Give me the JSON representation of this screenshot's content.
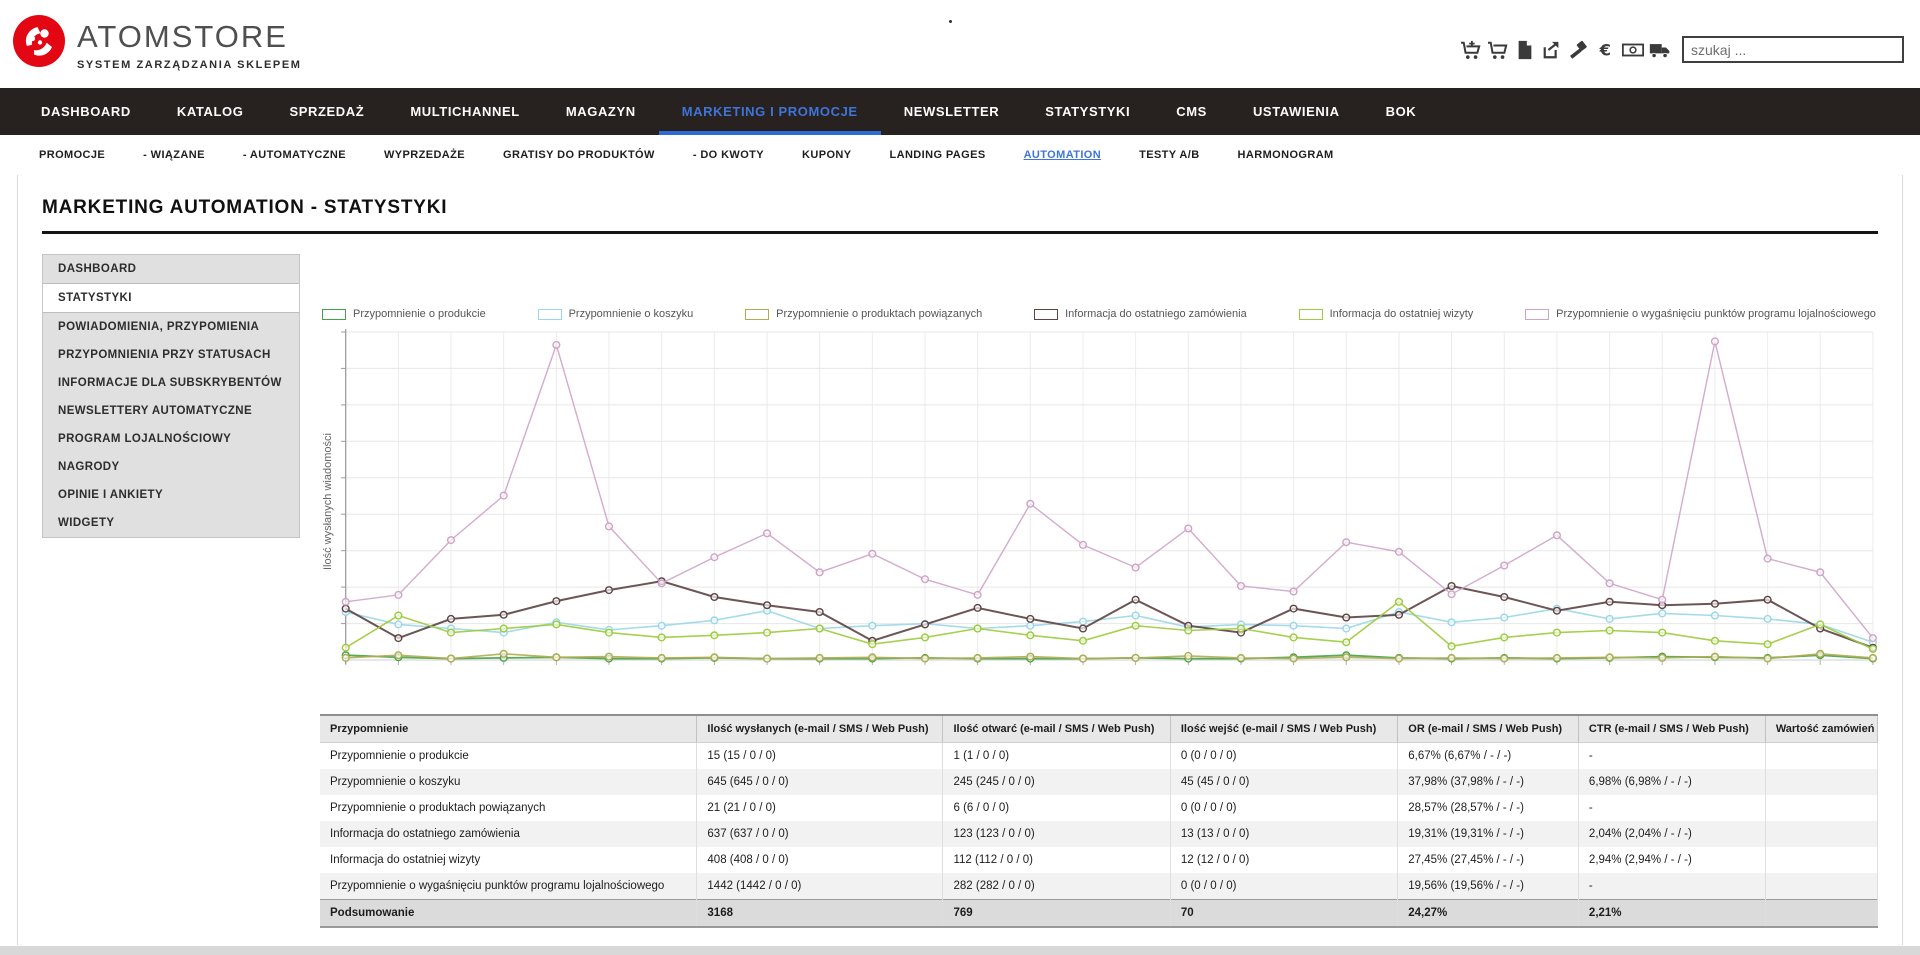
{
  "header": {
    "brand": "ATOMSTORE",
    "tagline": "SYSTEM ZARZĄDZANIA SKLEPEM",
    "search_placeholder": "szukaj ...",
    "logo_color": "#e30613",
    "icons": [
      "cart-plus-icon",
      "cart-icon",
      "file-icon",
      "export-icon",
      "gavel-icon",
      "euro-icon",
      "banknote-icon",
      "truck-icon"
    ]
  },
  "nav": {
    "background": "#272120",
    "active_color": "#3f74d8",
    "items": [
      {
        "label": "DASHBOARD",
        "active": false
      },
      {
        "label": "KATALOG",
        "active": false
      },
      {
        "label": "SPRZEDAŻ",
        "active": false
      },
      {
        "label": "MULTICHANNEL",
        "active": false
      },
      {
        "label": "MAGAZYN",
        "active": false
      },
      {
        "label": "MARKETING I PROMOCJE",
        "active": true
      },
      {
        "label": "NEWSLETTER",
        "active": false
      },
      {
        "label": "STATYSTYKI",
        "active": false
      },
      {
        "label": "CMS",
        "active": false
      },
      {
        "label": "USTAWIENIA",
        "active": false
      },
      {
        "label": "BOK",
        "active": false
      }
    ]
  },
  "subnav": {
    "items": [
      {
        "label": "PROMOCJE",
        "active": false
      },
      {
        "label": "- WIĄZANE",
        "active": false
      },
      {
        "label": "- AUTOMATYCZNE",
        "active": false
      },
      {
        "label": "WYPRZEDAŻE",
        "active": false
      },
      {
        "label": "GRATISY DO PRODUKTÓW",
        "active": false
      },
      {
        "label": "- DO KWOTY",
        "active": false
      },
      {
        "label": "KUPONY",
        "active": false
      },
      {
        "label": "LANDING PAGES",
        "active": false
      },
      {
        "label": "AUTOMATION",
        "active": true
      },
      {
        "label": "TESTY A/B",
        "active": false
      },
      {
        "label": "HARMONOGRAM",
        "active": false
      }
    ]
  },
  "page": {
    "title": "MARKETING AUTOMATION - STATYSTYKI"
  },
  "sidebar": {
    "items": [
      {
        "label": "DASHBOARD",
        "active": false
      },
      {
        "label": "STATYSTYKI",
        "active": true
      },
      {
        "label": "POWIADOMIENIA, PRZYPOMIENIA",
        "active": false
      },
      {
        "label": "PRZYPOMNIENIA PRZY STATUSACH",
        "active": false
      },
      {
        "label": "INFORMACJE DLA SUBSKRYBENTÓW",
        "active": false
      },
      {
        "label": "NEWSLETTERY AUTOMATYCZNE",
        "active": false
      },
      {
        "label": "PROGRAM LOJALNOŚCIOWY",
        "active": false
      },
      {
        "label": "NAGRODY",
        "active": false
      },
      {
        "label": "OPINIE I ANKIETY",
        "active": false
      },
      {
        "label": "WIDGETY",
        "active": false
      }
    ]
  },
  "chart_data": {
    "type": "line",
    "title": "",
    "xlabel": "",
    "ylabel": "Ilość wysłanych wiadomości",
    "x_tick_labels_visible": false,
    "y_tick_labels_visible": false,
    "grid": true,
    "legend_position": "top",
    "marker": "open-circle",
    "ylim": [
      0,
      470
    ],
    "series": [
      {
        "name": "Przypomnienie o produkcie",
        "color": "#47a247",
        "width": 1.8,
        "values": [
          7,
          4,
          2,
          3,
          4,
          2,
          2,
          3,
          2,
          2,
          2,
          3,
          2,
          2,
          2,
          3,
          2,
          2,
          4,
          7,
          3,
          2,
          3,
          2,
          3,
          5,
          4,
          3,
          7,
          2
        ]
      },
      {
        "name": "Przypomnienie o koszyku",
        "color": "#9ad7e6",
        "width": 1.6,
        "values": [
          70,
          52,
          46,
          40,
          55,
          44,
          50,
          58,
          72,
          46,
          50,
          53,
          46,
          50,
          56,
          65,
          48,
          52,
          50,
          46,
          70,
          55,
          62,
          75,
          60,
          68,
          65,
          60,
          52,
          26
        ]
      },
      {
        "name": "Przypomnienie o produktach powiązanych",
        "color": "#b0ad51",
        "width": 1.6,
        "values": [
          3,
          7,
          2,
          9,
          4,
          5,
          3,
          4,
          2,
          3,
          4,
          2,
          3,
          5,
          2,
          3,
          6,
          3,
          2,
          4,
          2,
          3,
          2,
          3,
          4,
          3,
          5,
          2,
          9,
          3
        ]
      },
      {
        "name": "Informacja do ostatniego zamówienia",
        "color": "#5e4343",
        "width": 2,
        "values": [
          75,
          32,
          60,
          66,
          86,
          102,
          115,
          92,
          80,
          70,
          28,
          52,
          76,
          60,
          46,
          88,
          50,
          40,
          75,
          62,
          66,
          108,
          92,
          72,
          85,
          80,
          82,
          88,
          46,
          18
        ]
      },
      {
        "name": "Informacja do ostatniej wizyty",
        "color": "#9ccb3b",
        "width": 1.6,
        "values": [
          18,
          65,
          40,
          46,
          52,
          40,
          33,
          36,
          40,
          46,
          23,
          33,
          46,
          36,
          28,
          50,
          43,
          46,
          33,
          26,
          85,
          20,
          33,
          40,
          43,
          40,
          28,
          23,
          52,
          16
        ]
      },
      {
        "name": "Przypomnienie o wygaśnięciu punktów programu lojalnościowego",
        "color": "#cfa3c6",
        "width": 1.4,
        "values": [
          85,
          95,
          175,
          240,
          460,
          195,
          112,
          150,
          185,
          128,
          155,
          118,
          95,
          228,
          168,
          135,
          192,
          108,
          100,
          172,
          158,
          96,
          138,
          182,
          112,
          88,
          465,
          148,
          128,
          32
        ]
      }
    ]
  },
  "table": {
    "columns": [
      "Przypomnienie",
      "Ilość wysłanych (e-mail / SMS / Web Push)",
      "Ilość otwarć (e-mail / SMS / Web Push)",
      "Ilość wejść (e-mail / SMS / Web Push)",
      "OR (e-mail / SMS / Web Push)",
      "CTR (e-mail / SMS / Web Push)",
      "Wartość zamówień"
    ],
    "rows": [
      [
        "Przypomnienie o produkcie",
        "15 (15 / 0 / 0)",
        "1 (1 / 0 / 0)",
        "0 (0 / 0 / 0)",
        "6,67% (6,67% / - / -)",
        "-",
        ""
      ],
      [
        "Przypomnienie o koszyku",
        "645 (645 / 0 / 0)",
        "245 (245 / 0 / 0)",
        "45 (45 / 0 / 0)",
        "37,98% (37,98% / - / -)",
        "6,98% (6,98% / - / -)",
        ""
      ],
      [
        "Przypomnienie o produktach powiązanych",
        "21 (21 / 0 / 0)",
        "6 (6 / 0 / 0)",
        "0 (0 / 0 / 0)",
        "28,57% (28,57% / - / -)",
        "-",
        ""
      ],
      [
        "Informacja do ostatniego zamówienia",
        "637 (637 / 0 / 0)",
        "123 (123 / 0 / 0)",
        "13 (13 / 0 / 0)",
        "19,31% (19,31% / - / -)",
        "2,04% (2,04% / - / -)",
        ""
      ],
      [
        "Informacja do ostatniej wizyty",
        "408 (408 / 0 / 0)",
        "112 (112 / 0 / 0)",
        "12 (12 / 0 / 0)",
        "27,45% (27,45% / - / -)",
        "2,94% (2,94% / - / -)",
        ""
      ],
      [
        "Przypomnienie o wygaśnięciu punktów programu lojalnościowego",
        "1442 (1442 / 0 / 0)",
        "282 (282 / 0 / 0)",
        "0 (0 / 0 / 0)",
        "19,56% (19,56% / - / -)",
        "-",
        ""
      ]
    ],
    "summary": [
      "Podsumowanie",
      "3168",
      "769",
      "70",
      "24,27%",
      "2,21%",
      ""
    ]
  }
}
